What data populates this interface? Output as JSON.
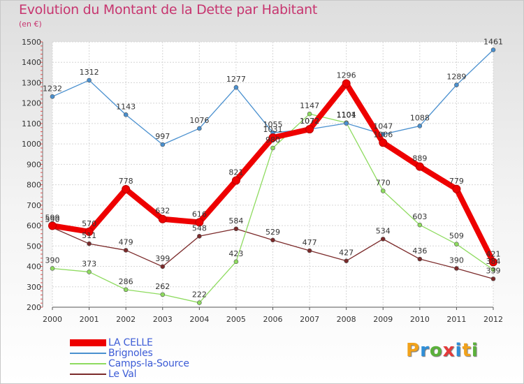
{
  "header": {
    "title": "Evolution du Montant de la Dette par Habitant",
    "unit": "(en €)"
  },
  "logo": {
    "text": "Proxiti",
    "letter_colors": [
      "#f1a21b",
      "#2f8fd8",
      "#5bb13b",
      "#e43a3a",
      "#2f8fd8",
      "#f1a21b",
      "#5bb13b"
    ]
  },
  "chart_data": {
    "type": "line",
    "title": "Evolution du Montant de la Dette par Habitant",
    "ylabel": "(en €)",
    "xlabel": "",
    "x": [
      "2000",
      "2001",
      "2002",
      "2003",
      "2004",
      "2005",
      "2006",
      "2007",
      "2008",
      "2009",
      "2010",
      "2011",
      "2012"
    ],
    "ylim": [
      200,
      1500
    ],
    "yticks": [
      200,
      300,
      400,
      500,
      600,
      700,
      800,
      900,
      1000,
      1100,
      1200,
      1300,
      1400,
      1500
    ],
    "grid": true,
    "legend_position": "bottom-left",
    "series": [
      {
        "name": "LA CELLE",
        "color": "#ee0000",
        "values": [
          599,
          570,
          778,
          632,
          616,
          821,
          1031,
          1072,
          1296,
          1006,
          889,
          779,
          421
        ],
        "labels": [
          "599",
          "570",
          "778",
          "632",
          "616",
          "821",
          "1031",
          "1072",
          "1296",
          "1006",
          "889",
          "779",
          "421"
        ]
      },
      {
        "name": "Brignoles",
        "color": "#4a90cf",
        "values": [
          1232,
          1312,
          1143,
          997,
          1076,
          1277,
          1055,
          1072,
          1101,
          1047,
          1088,
          1289,
          1461
        ],
        "labels": [
          "1232",
          "1312",
          "1143",
          "997",
          "1076",
          "1277",
          "1055",
          "1072",
          "1101",
          "1047",
          "1088",
          "1289",
          "1461"
        ]
      },
      {
        "name": "Camps-la-Source",
        "color": "#8edb5f",
        "values": [
          390,
          373,
          286,
          262,
          222,
          423,
          980,
          1147,
          1104,
          770,
          603,
          509,
          384
        ],
        "labels": [
          "390",
          "373",
          "286",
          "262",
          "222",
          "423",
          "980",
          "1147",
          "1104",
          "770",
          "603",
          "509",
          "384"
        ]
      },
      {
        "name": "Le Val",
        "color": "#7b2a2a",
        "values": [
          590,
          511,
          479,
          399,
          548,
          584,
          529,
          477,
          427,
          534,
          436,
          390,
          339
        ],
        "labels": [
          "590",
          "511",
          "479",
          "399",
          "548",
          "584",
          "529",
          "477",
          "427",
          "534",
          "436",
          "390",
          "339"
        ]
      }
    ]
  }
}
